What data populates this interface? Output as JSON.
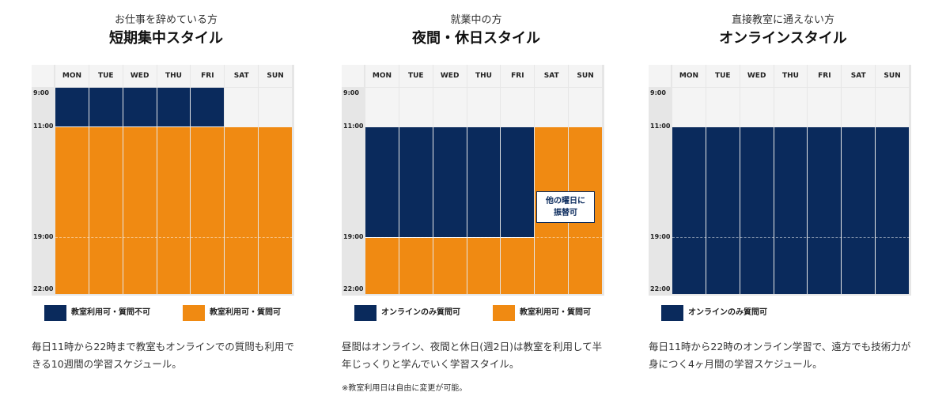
{
  "days": [
    "MON",
    "TUE",
    "WED",
    "THU",
    "FRI",
    "SAT",
    "SUN"
  ],
  "times": [
    "9:00",
    "11:00",
    "19:00",
    "22:00"
  ],
  "legend_labels": {
    "classroom_no_question": "教室利用可・質問不可",
    "classroom_question": "教室利用可・質問可",
    "online_question": "オンラインのみ質問可"
  },
  "colors": {
    "navy": "#0a2a5c",
    "orange": "#f08a12",
    "empty": "#f4f4f4",
    "grid": "#e6e6e6"
  },
  "styles": [
    {
      "subtitle": "お仕事を辞めている方",
      "title": "短期集中スタイル",
      "description": "毎日11時から22時まで教室もオンラインでの質問も利用できる10週間の学習スケジュール。",
      "schedule": [
        {
          "days": [
            "MON",
            "TUE",
            "WED",
            "THU",
            "FRI"
          ],
          "from": "9:00",
          "to": "11:00",
          "type": "classroom_no_question"
        },
        {
          "days": [
            "MON",
            "TUE",
            "WED",
            "THU",
            "FRI",
            "SAT",
            "SUN"
          ],
          "from": "11:00",
          "to": "22:00",
          "type": "classroom_question"
        }
      ],
      "legend": [
        "classroom_no_question",
        "classroom_question"
      ]
    },
    {
      "subtitle": "就業中の方",
      "title": "夜間・休日スタイル",
      "description": "昼間はオンライン、夜間と休日(週2日)は教室を利用して半年じっくりと学んでいく学習スタイル。",
      "note": "※教室利用日は自由に変更が可能。",
      "callout": [
        "他の曜日に",
        "振替可"
      ],
      "schedule": [
        {
          "days": [
            "MON",
            "TUE",
            "WED",
            "THU",
            "FRI"
          ],
          "from": "11:00",
          "to": "19:00",
          "type": "online_question"
        },
        {
          "days": [
            "MON",
            "TUE",
            "WED",
            "THU",
            "FRI"
          ],
          "from": "19:00",
          "to": "22:00",
          "type": "classroom_question"
        },
        {
          "days": [
            "SAT",
            "SUN"
          ],
          "from": "11:00",
          "to": "22:00",
          "type": "classroom_question"
        }
      ],
      "legend": [
        "online_question",
        "classroom_question"
      ]
    },
    {
      "subtitle": "直接教室に通えない方",
      "title": "オンラインスタイル",
      "description": "毎日11時から22時のオンライン学習で、遠方でも技術力が身につく4ヶ月間の学習スケジュール。",
      "schedule": [
        {
          "days": [
            "MON",
            "TUE",
            "WED",
            "THU",
            "FRI",
            "SAT",
            "SUN"
          ],
          "from": "11:00",
          "to": "22:00",
          "type": "online_question"
        }
      ],
      "legend": [
        "online_question"
      ]
    }
  ]
}
